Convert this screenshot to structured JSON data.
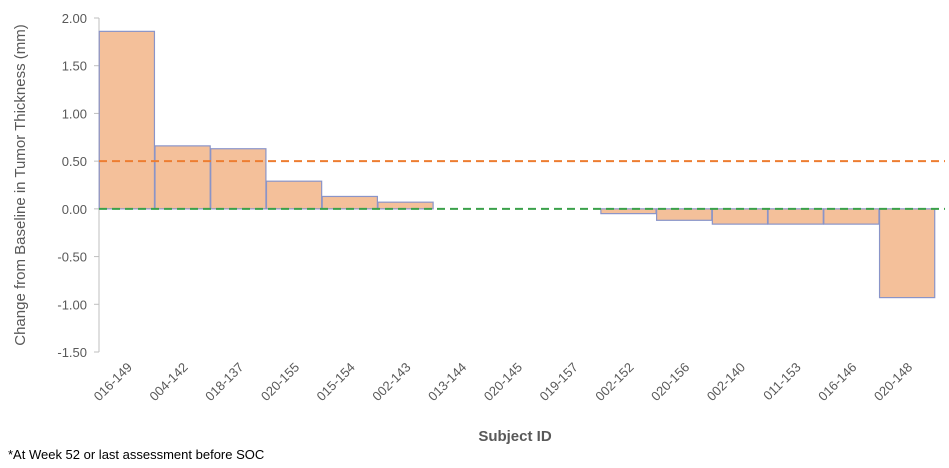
{
  "chart_data": {
    "type": "bar",
    "categories": [
      "016-149",
      "004-142",
      "018-137",
      "020-155",
      "015-154",
      "002-143",
      "013-144",
      "020-145",
      "019-157",
      "002-152",
      "020-156",
      "002-140",
      "011-153",
      "016-146",
      "020-148"
    ],
    "values": [
      1.86,
      0.66,
      0.63,
      0.29,
      0.13,
      0.07,
      0.0,
      0.0,
      0.0,
      -0.05,
      -0.12,
      -0.16,
      -0.16,
      -0.16,
      -0.93
    ],
    "xlabel": "Subject ID",
    "ylabel": "Change from Baseline in Tumor Thickness (mm)",
    "ylim": [
      -1.5,
      2.0
    ],
    "yticks": [
      "2.00",
      "1.50",
      "1.00",
      "0.50",
      "0.00",
      "-0.50",
      "-1.00",
      "-1.50"
    ],
    "ytick_values": [
      2.0,
      1.5,
      1.0,
      0.5,
      0.0,
      -0.5,
      -1.0,
      -1.5
    ],
    "reference_lines": [
      {
        "value": 0.5,
        "color": "#ed7d31",
        "style": "dashed"
      },
      {
        "value": 0.0,
        "color": "#3aa14a",
        "style": "dashed"
      }
    ],
    "bar_fill": "#f4c09a",
    "bar_stroke": "#8a94c8",
    "grid": false,
    "legend": "none"
  },
  "footnote": "*At Week 52 or last assessment before SOC"
}
